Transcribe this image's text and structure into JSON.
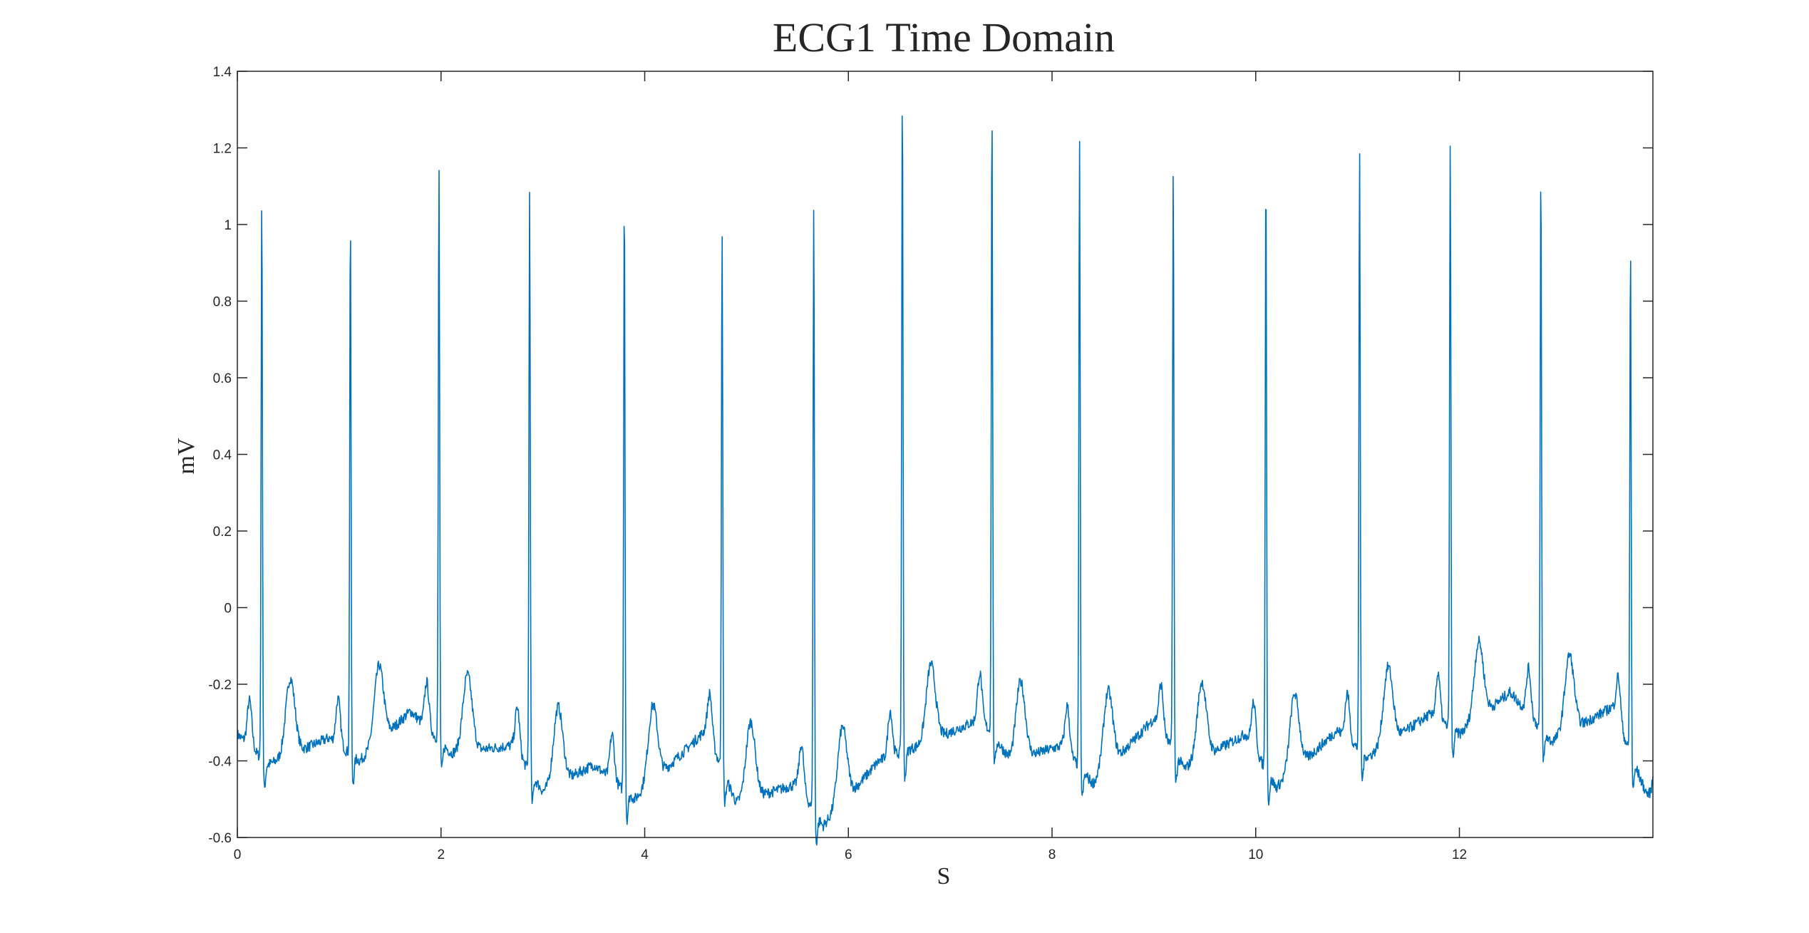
{
  "chart_data": {
    "type": "line",
    "title": "ECG1 Time Domain",
    "xlabel": "S",
    "ylabel": "mV",
    "xlim": [
      0,
      13.9
    ],
    "ylim": [
      -0.6,
      1.4
    ],
    "xticks": [
      0,
      2,
      4,
      6,
      8,
      10,
      12
    ],
    "xtick_labels": [
      "0",
      "2",
      "4",
      "6",
      "8",
      "10",
      "12"
    ],
    "yticks": [
      -0.6,
      -0.4,
      -0.2,
      0,
      0.2,
      0.4,
      0.6,
      0.8,
      1,
      1.2,
      1.4
    ],
    "ytick_labels": [
      "-0.6",
      "-0.4",
      "-0.2",
      "0",
      "0.2",
      "0.4",
      "0.6",
      "0.8",
      "1",
      "1.2",
      "1.4"
    ],
    "grid": false,
    "line_color": "#0072BD",
    "series": [
      {
        "r_peaks": [
          {
            "t": 0.24,
            "amp": 1.08
          },
          {
            "t": 1.11,
            "amp": 1.02
          },
          {
            "t": 1.98,
            "amp": 1.16
          },
          {
            "t": 2.87,
            "amp": 1.1
          },
          {
            "t": 3.8,
            "amp": 1.1
          },
          {
            "t": 4.76,
            "amp": 1.0
          },
          {
            "t": 5.66,
            "amp": 1.06
          },
          {
            "t": 6.53,
            "amp": 1.37
          },
          {
            "t": 7.41,
            "amp": 1.32
          },
          {
            "t": 8.27,
            "amp": 1.22
          },
          {
            "t": 9.19,
            "amp": 1.15
          },
          {
            "t": 10.1,
            "amp": 1.16
          },
          {
            "t": 11.02,
            "amp": 1.19
          },
          {
            "t": 11.91,
            "amp": 1.21
          },
          {
            "t": 12.8,
            "amp": 1.15
          },
          {
            "t": 13.68,
            "amp": 0.95
          }
        ],
        "baseline_points": [
          {
            "t": 0.0,
            "v": -0.33
          },
          {
            "t": 0.3,
            "v": -0.41
          },
          {
            "t": 0.9,
            "v": -0.34
          },
          {
            "t": 1.2,
            "v": -0.4
          },
          {
            "t": 1.7,
            "v": -0.27
          },
          {
            "t": 2.1,
            "v": -0.38
          },
          {
            "t": 2.7,
            "v": -0.36
          },
          {
            "t": 3.0,
            "v": -0.48
          },
          {
            "t": 3.5,
            "v": -0.41
          },
          {
            "t": 3.9,
            "v": -0.5
          },
          {
            "t": 4.6,
            "v": -0.32
          },
          {
            "t": 4.9,
            "v": -0.51
          },
          {
            "t": 5.5,
            "v": -0.46
          },
          {
            "t": 5.75,
            "v": -0.57
          },
          {
            "t": 6.3,
            "v": -0.4
          },
          {
            "t": 6.7,
            "v": -0.36
          },
          {
            "t": 7.3,
            "v": -0.29
          },
          {
            "t": 7.6,
            "v": -0.4
          },
          {
            "t": 8.1,
            "v": -0.36
          },
          {
            "t": 8.4,
            "v": -0.46
          },
          {
            "t": 9.0,
            "v": -0.29
          },
          {
            "t": 9.3,
            "v": -0.42
          },
          {
            "t": 9.9,
            "v": -0.33
          },
          {
            "t": 10.2,
            "v": -0.47
          },
          {
            "t": 10.8,
            "v": -0.32
          },
          {
            "t": 11.1,
            "v": -0.39
          },
          {
            "t": 11.7,
            "v": -0.28
          },
          {
            "t": 12.0,
            "v": -0.33
          },
          {
            "t": 12.5,
            "v": -0.22
          },
          {
            "t": 12.9,
            "v": -0.35
          },
          {
            "t": 13.5,
            "v": -0.26
          },
          {
            "t": 13.9,
            "v": -0.53
          }
        ]
      }
    ]
  }
}
